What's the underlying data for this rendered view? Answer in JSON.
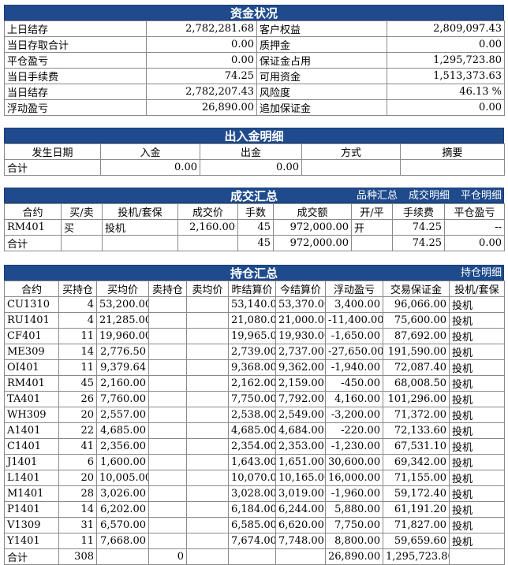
{
  "fund": {
    "title": "资金状况",
    "rows": [
      [
        "上日结存",
        "2,782,281.68",
        "客户权益",
        "2,809,097.43"
      ],
      [
        "当日存取合计",
        "0.00",
        "质押金",
        "0.00"
      ],
      [
        "平仓盈亏",
        "0.00",
        "保证金占用",
        "1,295,723.80"
      ],
      [
        "当日手续费",
        "74.25",
        "可用资金",
        "1,513,373.63"
      ],
      [
        "当日结存",
        "2,782,207.43",
        "风险度",
        "46.13 %"
      ],
      [
        "浮动盈亏",
        "26,890.00",
        "追加保证金",
        "0.00"
      ]
    ]
  },
  "cashflow": {
    "title": "出入金明细",
    "headers": [
      "发生日期",
      "入金",
      "出金",
      "方式",
      "摘要"
    ],
    "total": [
      "合计",
      "0.00",
      "0.00",
      "",
      ""
    ]
  },
  "trades": {
    "title": "成交汇总",
    "links": [
      "品种汇总",
      "成交明细",
      "平仓明细"
    ],
    "headers": [
      "合约",
      "买/卖",
      "投机/套保",
      "成交价",
      "手数",
      "成交额",
      "开/平",
      "手续费",
      "平仓盈亏"
    ],
    "rows": [
      [
        "RM401",
        "买",
        "投机",
        "2,160.00",
        "45",
        "972,000.00",
        "开",
        "74.25",
        "--"
      ]
    ],
    "total": [
      "合计",
      "",
      "",
      "",
      "45",
      "972,000.00",
      "",
      "74.25",
      "0.00"
    ]
  },
  "positions": {
    "title": "持仓汇总",
    "links": [
      "持仓明细"
    ],
    "headers": [
      "合约",
      "买持仓",
      "买均价",
      "卖持仓",
      "卖均价",
      "昨结算价",
      "今结算价",
      "浮动盈亏",
      "交易保证金",
      "投机/套保"
    ],
    "rows": [
      [
        "CU1310",
        "4",
        "53,200.00",
        "",
        "",
        "53,140.00",
        "53,370.00",
        "3,400.00",
        "96,066.00",
        "投机"
      ],
      [
        "RU1401",
        "4",
        "21,285.00",
        "",
        "",
        "21,080.00",
        "21,000.00",
        "-11,400.00",
        "75,600.00",
        "投机"
      ],
      [
        "CF401",
        "11",
        "19,960.00",
        "",
        "",
        "19,965.00",
        "19,930.00",
        "-1,650.00",
        "87,692.00",
        "投机"
      ],
      [
        "ME309",
        "14",
        "2,776.50",
        "",
        "",
        "2,739.00",
        "2,737.00",
        "-27,650.00",
        "191,590.00",
        "投机"
      ],
      [
        "OI401",
        "11",
        "9,379.64",
        "",
        "",
        "9,368.00",
        "9,362.00",
        "-1,940.00",
        "72,087.40",
        "投机"
      ],
      [
        "RM401",
        "45",
        "2,160.00",
        "",
        "",
        "2,162.00",
        "2,159.00",
        "-450.00",
        "68,008.50",
        "投机"
      ],
      [
        "TA401",
        "26",
        "7,760.00",
        "",
        "",
        "7,750.00",
        "7,792.00",
        "4,160.00",
        "101,296.00",
        "投机"
      ],
      [
        "WH309",
        "20",
        "2,557.00",
        "",
        "",
        "2,538.00",
        "2,549.00",
        "-3,200.00",
        "71,372.00",
        "投机"
      ],
      [
        "A1401",
        "22",
        "4,685.00",
        "",
        "",
        "4,685.00",
        "4,684.00",
        "-220.00",
        "72,133.60",
        "投机"
      ],
      [
        "C1401",
        "41",
        "2,356.00",
        "",
        "",
        "2,354.00",
        "2,353.00",
        "-1,230.00",
        "67,531.10",
        "投机"
      ],
      [
        "J1401",
        "6",
        "1,600.00",
        "",
        "",
        "1,643.00",
        "1,651.00",
        "30,600.00",
        "69,342.00",
        "投机"
      ],
      [
        "L1401",
        "20",
        "10,005.00",
        "",
        "",
        "10,070.00",
        "10,165.00",
        "16,000.00",
        "71,155.00",
        "投机"
      ],
      [
        "M1401",
        "28",
        "3,026.00",
        "",
        "",
        "3,028.00",
        "3,019.00",
        "-1,960.00",
        "59,172.40",
        "投机"
      ],
      [
        "P1401",
        "14",
        "6,202.00",
        "",
        "",
        "6,184.00",
        "6,244.00",
        "5,880.00",
        "61,191.20",
        "投机"
      ],
      [
        "V1309",
        "31",
        "6,570.00",
        "",
        "",
        "6,585.00",
        "6,620.00",
        "7,750.00",
        "71,827.00",
        "投机"
      ],
      [
        "Y1401",
        "11",
        "7,668.00",
        "",
        "",
        "7,674.00",
        "7,748.00",
        "8,800.00",
        "59,659.60",
        "投机"
      ]
    ],
    "total": [
      "合计",
      "308",
      "",
      "0",
      "",
      "",
      "",
      "26,890.00",
      "1,295,723.80",
      ""
    ]
  }
}
